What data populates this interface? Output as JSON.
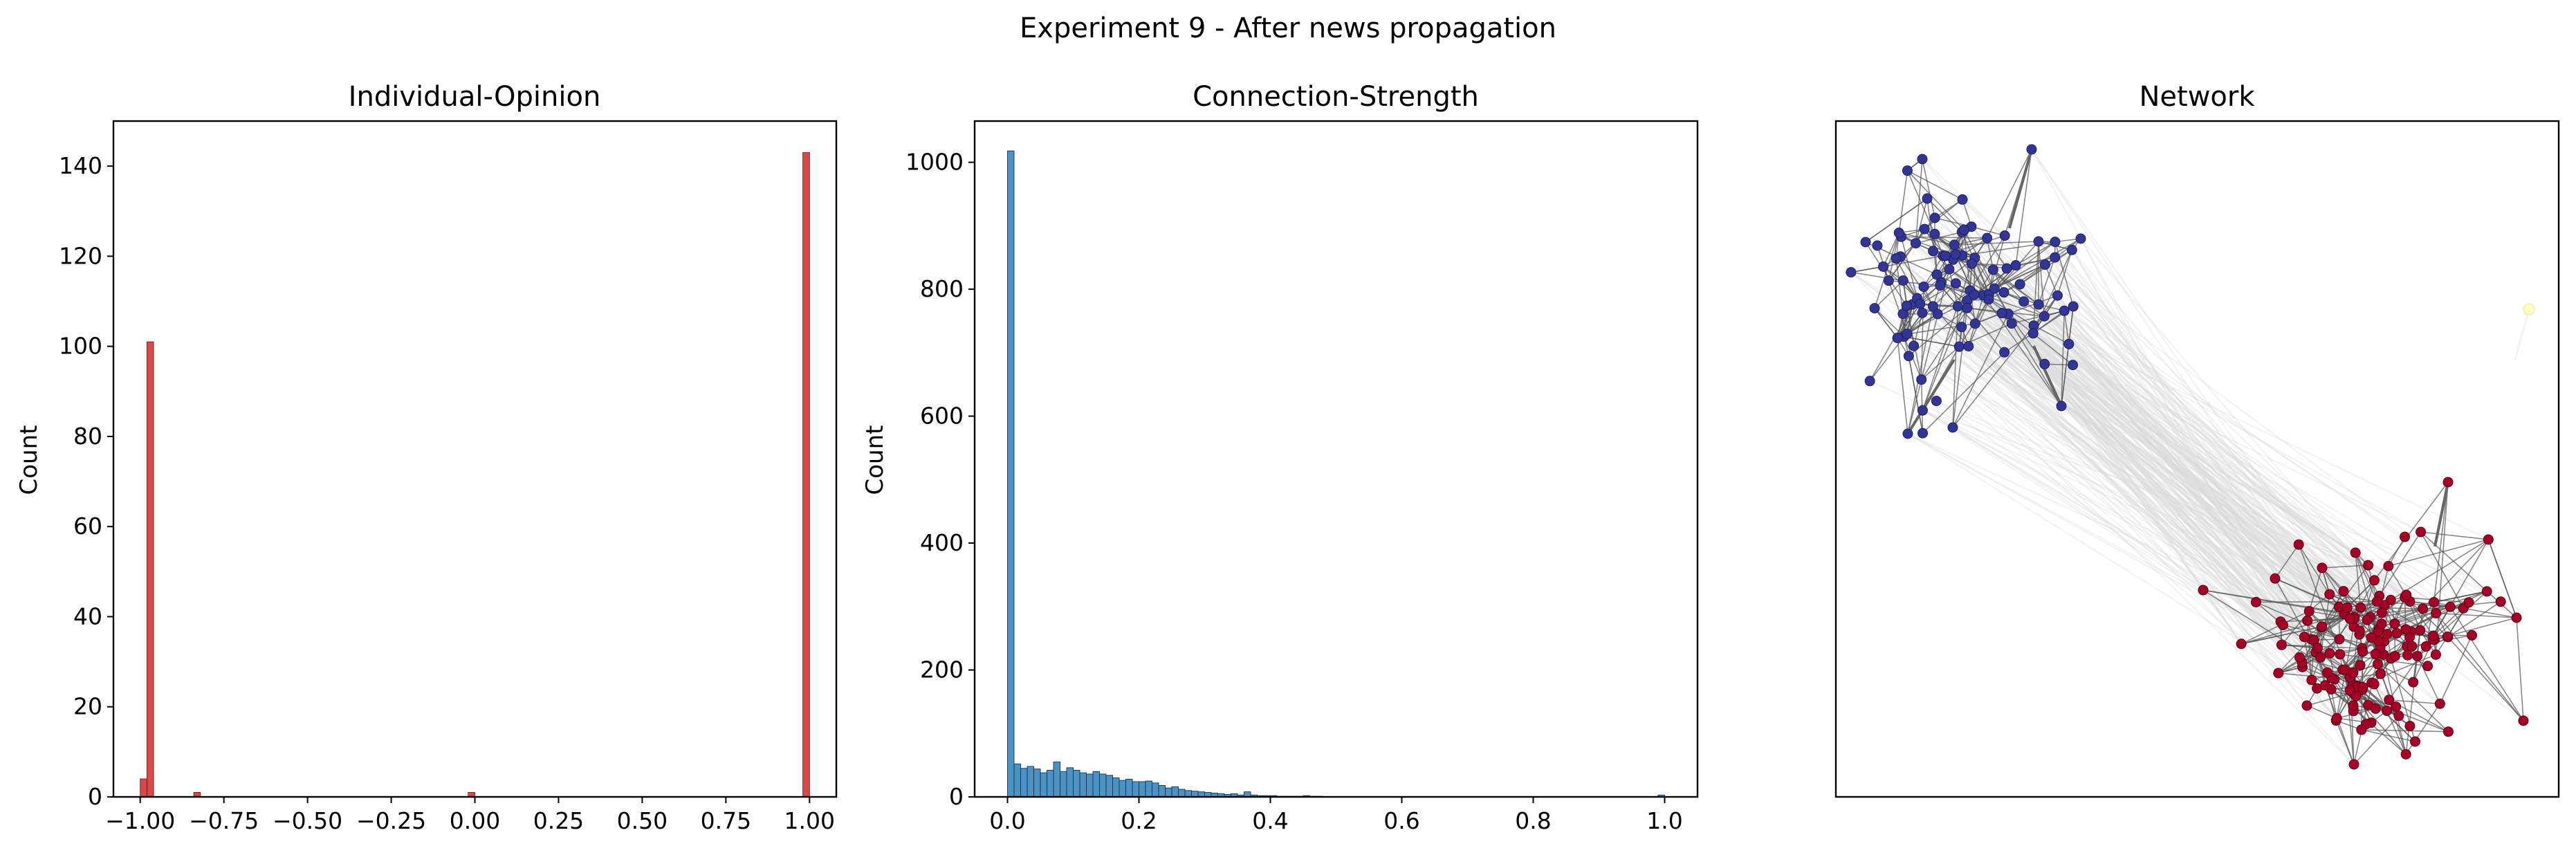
{
  "figure": {
    "suptitle": "Experiment 9 - After news propagation"
  },
  "chart_data": [
    {
      "type": "bar",
      "title": "Individual-Opinion",
      "xlabel": "",
      "ylabel": "Count",
      "xlim": [
        -1.08,
        1.08
      ],
      "ylim": [
        0,
        150
      ],
      "xticks": [
        "-1.00",
        "-0.75",
        "-0.50",
        "-0.25",
        "0.00",
        "0.25",
        "0.50",
        "0.75",
        "1.00"
      ],
      "xtick_values": [
        -1.0,
        -0.75,
        -0.5,
        -0.25,
        0.0,
        0.25,
        0.5,
        0.75,
        1.0
      ],
      "yticks": [
        "0",
        "20",
        "40",
        "60",
        "80",
        "100",
        "120",
        "140"
      ],
      "ytick_values": [
        0,
        20,
        40,
        60,
        80,
        100,
        120,
        140
      ],
      "bin_width": 0.02,
      "bins": [
        {
          "x": -1.0,
          "count": 4
        },
        {
          "x": -0.98,
          "count": 101
        },
        {
          "x": -0.84,
          "count": 1
        },
        {
          "x": -0.02,
          "count": 1
        },
        {
          "x": 0.98,
          "count": 143
        }
      ],
      "color": "#d62728"
    },
    {
      "type": "bar",
      "title": "Connection-Strength",
      "xlabel": "",
      "ylabel": "Count",
      "xlim": [
        -0.05,
        1.05
      ],
      "ylim": [
        0,
        1065
      ],
      "xticks": [
        "0.0",
        "0.2",
        "0.4",
        "0.6",
        "0.8",
        "1.0"
      ],
      "xtick_values": [
        0.0,
        0.2,
        0.4,
        0.6,
        0.8,
        1.0
      ],
      "yticks": [
        "0",
        "200",
        "400",
        "600",
        "800",
        "1000"
      ],
      "ytick_values": [
        0,
        200,
        400,
        600,
        800,
        1000
      ],
      "bin_width": 0.01,
      "bin_start": 0.0,
      "counts": [
        1018,
        52,
        45,
        48,
        44,
        38,
        42,
        55,
        40,
        46,
        42,
        38,
        36,
        40,
        36,
        34,
        30,
        26,
        28,
        24,
        24,
        25,
        22,
        18,
        14,
        16,
        12,
        10,
        9,
        8,
        7,
        6,
        5,
        4,
        5,
        3,
        8,
        3,
        2,
        2,
        2,
        1,
        1,
        1,
        1,
        2,
        1,
        1,
        0,
        0,
        0,
        0,
        0,
        0,
        0,
        0,
        0,
        0,
        0,
        0,
        0,
        0,
        0,
        0,
        0,
        0,
        0,
        0,
        0,
        0,
        0,
        0,
        0,
        0,
        0,
        0,
        0,
        0,
        0,
        0,
        0,
        0,
        0,
        0,
        0,
        0,
        0,
        0,
        0,
        0,
        0,
        0,
        0,
        0,
        0,
        0,
        0,
        0,
        0,
        3
      ],
      "color": "#1f77b4"
    },
    {
      "type": "network",
      "title": "Network",
      "communities": [
        {
          "name": "",
          "color": "#313695",
          "nodes": 100
        },
        {
          "name": "",
          "color": "#a50026",
          "nodes": 146
        },
        {
          "name": "",
          "color": "#ffffbf",
          "nodes": 1
        }
      ]
    }
  ]
}
